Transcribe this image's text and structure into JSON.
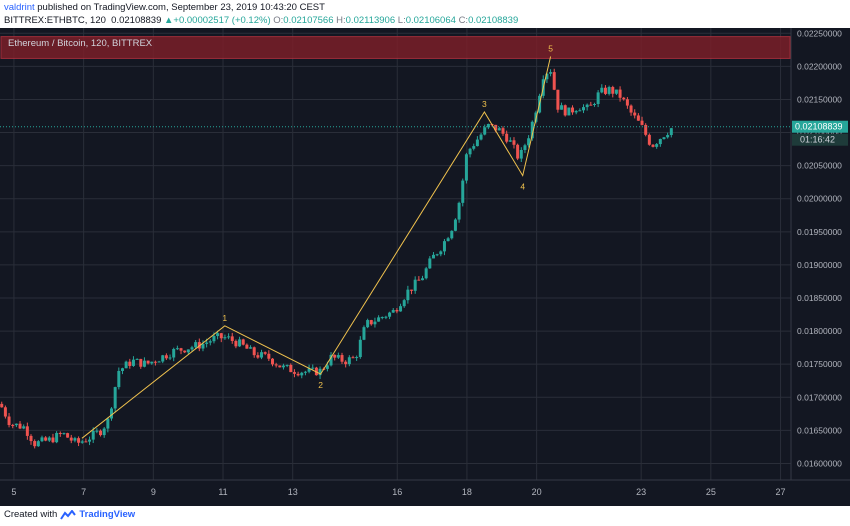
{
  "header": {
    "author": "valdrint",
    "published": "published on TradingView.com, September 23, 2019 10:43:20 CEST",
    "symbol": "BITTREX:ETHBTC, 120",
    "last": "0.02108839",
    "arrow": "▲",
    "change": "+0.00002517 (+0.12%)",
    "o_label": "O:",
    "o_value": "0.02107566",
    "h_label": "H:",
    "h_value": "0.02113906",
    "l_label": "L:",
    "l_value": "0.02106064",
    "c_label": "C:",
    "c_value": "0.02108839"
  },
  "legend_label": "Ethereum / Bitcoin, 120, BITTREX",
  "price_label": "0.02108839",
  "countdown_label": "01:16:42",
  "footer": {
    "created_with": "Created with",
    "brand": "TradingView"
  },
  "colors": {
    "background": "#131722",
    "up": "#26a69a",
    "down": "#ef5350",
    "wave": "#f0c24e",
    "zone": "#7a1f29",
    "axis_text": "#b2b5be"
  },
  "chart_data": {
    "type": "candlestick",
    "x_ticks": [
      "5",
      "7",
      "9",
      "11",
      "13",
      "16",
      "18",
      "20",
      "23",
      "25",
      "27"
    ],
    "x_tick_pos": [
      5,
      7,
      9,
      11,
      13,
      16,
      18,
      20,
      23,
      25,
      27
    ],
    "xlim": [
      4.6,
      27.3
    ],
    "y_ticks": [
      "0.02250000",
      "0.02200000",
      "0.02150000",
      "0.02100000",
      "0.02050000",
      "0.02000000",
      "0.01950000",
      "0.01900000",
      "0.01850000",
      "0.01800000",
      "0.01750000",
      "0.01700000",
      "0.01650000",
      "0.01600000"
    ],
    "ylim": [
      0.01575,
      0.02258
    ],
    "last_price": 0.02108839,
    "resistance_zone": [
      0.02212,
      0.02245
    ],
    "wave_points": [
      {
        "label": "1",
        "x": 11.05,
        "y": 0.01808
      },
      {
        "label": "2",
        "x": 13.8,
        "y": 0.01735
      },
      {
        "label": "3",
        "x": 18.5,
        "y": 0.02131
      },
      {
        "label": "4",
        "x": 19.6,
        "y": 0.02035
      },
      {
        "label": "5",
        "x": 20.4,
        "y": 0.02215
      }
    ],
    "wave_start": {
      "x": 6.95,
      "y": 0.01638
    },
    "wave_end_x": 20.45,
    "price_path": [
      [
        4.6,
        0.0169
      ],
      [
        4.9,
        0.0166
      ],
      [
        5.3,
        0.01655
      ],
      [
        5.6,
        0.0163
      ],
      [
        6.0,
        0.01635
      ],
      [
        6.4,
        0.01645
      ],
      [
        6.8,
        0.0163
      ],
      [
        7.2,
        0.0164
      ],
      [
        7.5,
        0.0165
      ],
      [
        7.7,
        0.01665
      ],
      [
        8.0,
        0.0174
      ],
      [
        8.4,
        0.01755
      ],
      [
        8.8,
        0.0175
      ],
      [
        9.2,
        0.0176
      ],
      [
        9.6,
        0.0177
      ],
      [
        10.0,
        0.01775
      ],
      [
        10.4,
        0.0178
      ],
      [
        10.8,
        0.0179
      ],
      [
        11.1,
        0.0179
      ],
      [
        11.5,
        0.0178
      ],
      [
        11.9,
        0.01765
      ],
      [
        12.3,
        0.0176
      ],
      [
        12.7,
        0.01745
      ],
      [
        13.1,
        0.0174
      ],
      [
        13.5,
        0.01738
      ],
      [
        13.8,
        0.0174
      ],
      [
        14.1,
        0.0176
      ],
      [
        14.5,
        0.01755
      ],
      [
        14.8,
        0.0176
      ],
      [
        15.1,
        0.0181
      ],
      [
        15.5,
        0.0182
      ],
      [
        15.9,
        0.0183
      ],
      [
        16.3,
        0.0186
      ],
      [
        16.7,
        0.0188
      ],
      [
        17.0,
        0.0191
      ],
      [
        17.3,
        0.0193
      ],
      [
        17.6,
        0.0196
      ],
      [
        17.8,
        0.02
      ],
      [
        18.0,
        0.0207
      ],
      [
        18.3,
        0.0209
      ],
      [
        18.6,
        0.0211
      ],
      [
        18.9,
        0.02105
      ],
      [
        19.2,
        0.0209
      ],
      [
        19.5,
        0.0206
      ],
      [
        19.8,
        0.021
      ],
      [
        20.0,
        0.0214
      ],
      [
        20.2,
        0.0219
      ],
      [
        20.4,
        0.02195
      ],
      [
        20.6,
        0.0214
      ],
      [
        20.9,
        0.0213
      ],
      [
        21.2,
        0.0214
      ],
      [
        21.5,
        0.02135
      ],
      [
        21.8,
        0.0216
      ],
      [
        22.1,
        0.02165
      ],
      [
        22.4,
        0.02155
      ],
      [
        22.7,
        0.0213
      ],
      [
        23.0,
        0.0211
      ],
      [
        23.3,
        0.0208
      ],
      [
        23.6,
        0.02095
      ],
      [
        23.9,
        0.02108
      ]
    ]
  }
}
